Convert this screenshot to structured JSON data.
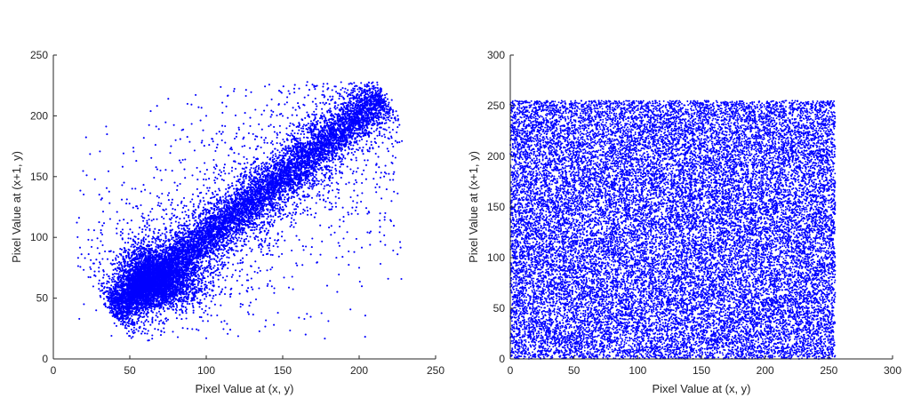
{
  "colors": {
    "marker": "#0000ff",
    "axis": "#262626",
    "background": "#ffffff"
  },
  "chart_data": [
    {
      "type": "scatter",
      "title": "",
      "xlabel": "Pixel Value at (x, y)",
      "ylabel": "Pixel Value at (x+1, y)",
      "xlim": [
        0,
        250
      ],
      "ylim": [
        0,
        250
      ],
      "xticks": [
        "0",
        "50",
        "100",
        "150",
        "200",
        "250"
      ],
      "yticks": [
        "0",
        "50",
        "100",
        "150",
        "200",
        "250"
      ],
      "grid": false,
      "legend": "none",
      "series": [
        {
          "color": "#0000ff",
          "marker": "dot",
          "distribution": "points concentrated along the diagonal y = x from about (40, 40) to (215, 215), with scatter spreading roughly ±45 around the diagonal",
          "points": [
            [
              17,
              33
            ],
            [
              20,
              45
            ],
            [
              28,
              40
            ],
            [
              35,
              62
            ],
            [
              38,
              19
            ],
            [
              42,
              53
            ],
            [
              45,
              143
            ],
            [
              48,
              38
            ],
            [
              50,
              60
            ],
            [
              52,
              48
            ],
            [
              55,
              65
            ],
            [
              58,
              52
            ],
            [
              60,
              70
            ],
            [
              62,
              45
            ],
            [
              65,
              78
            ],
            [
              68,
              60
            ],
            [
              70,
              75
            ],
            [
              72,
              90
            ],
            [
              75,
              68
            ],
            [
              78,
              85
            ],
            [
              80,
              180
            ],
            [
              82,
              95
            ],
            [
              85,
              80
            ],
            [
              88,
              100
            ],
            [
              90,
              70
            ],
            [
              92,
              105
            ],
            [
              95,
              88
            ],
            [
              98,
              115
            ],
            [
              100,
              17
            ],
            [
              100,
              200
            ],
            [
              102,
              110
            ],
            [
              105,
              95
            ],
            [
              108,
              125
            ],
            [
              110,
              100
            ],
            [
              112,
              130
            ],
            [
              115,
              115
            ],
            [
              118,
              140
            ],
            [
              120,
              108
            ],
            [
              122,
              145
            ],
            [
              125,
              120
            ],
            [
              128,
              150
            ],
            [
              130,
              90
            ],
            [
              132,
              155
            ],
            [
              135,
              130
            ],
            [
              138,
              160
            ],
            [
              140,
              60
            ],
            [
              142,
              165
            ],
            [
              145,
              140
            ],
            [
              148,
              170
            ],
            [
              150,
              125
            ],
            [
              152,
              175
            ],
            [
              155,
              150
            ],
            [
              158,
              180
            ],
            [
              160,
              145
            ],
            [
              162,
              185
            ],
            [
              165,
              20
            ],
            [
              165,
              160
            ],
            [
              168,
              190
            ],
            [
              170,
              165
            ],
            [
              172,
              195
            ],
            [
              175,
              170
            ],
            [
              178,
              198
            ],
            [
              180,
              178
            ],
            [
              182,
              200
            ],
            [
              185,
              182
            ],
            [
              188,
              205
            ],
            [
              190,
              188
            ],
            [
              192,
              208
            ],
            [
              195,
              192
            ],
            [
              198,
              210
            ],
            [
              200,
              75
            ],
            [
              200,
              198
            ],
            [
              205,
              205
            ],
            [
              210,
              215
            ],
            [
              212,
              220
            ],
            [
              215,
              212
            ],
            [
              220,
              200
            ],
            [
              225,
              178
            ]
          ]
        }
      ]
    },
    {
      "type": "scatter",
      "title": "",
      "xlabel": "Pixel Value at (x, y)",
      "ylabel": "Pixel Value at (x+1, y)",
      "xlim": [
        0,
        300
      ],
      "ylim": [
        0,
        300
      ],
      "xticks": [
        "0",
        "50",
        "100",
        "150",
        "200",
        "250",
        "300"
      ],
      "yticks": [
        "0",
        "50",
        "100",
        "150",
        "200",
        "250",
        "300"
      ],
      "grid": false,
      "legend": "none",
      "series": [
        {
          "color": "#0000ff",
          "marker": "dot",
          "distribution": "points uniformly filling the square 0–255 by 0–255",
          "x_range": [
            0,
            255
          ],
          "y_range": [
            0,
            255
          ]
        }
      ]
    }
  ]
}
